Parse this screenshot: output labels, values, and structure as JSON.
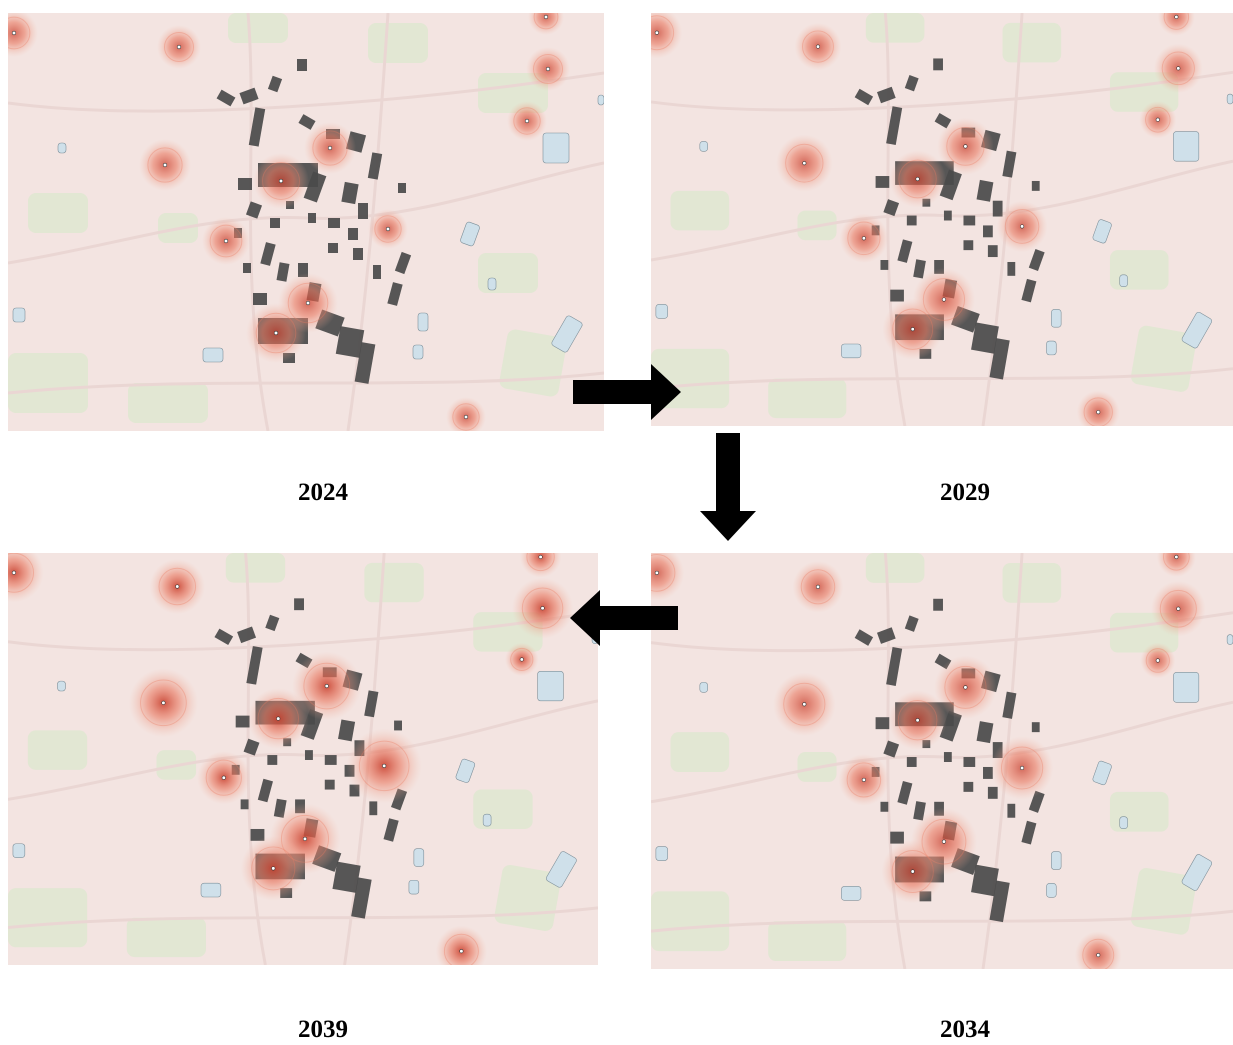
{
  "panels": [
    {
      "id": "p2024",
      "year": "2024",
      "level": 1
    },
    {
      "id": "p2029",
      "year": "2029",
      "level": 2
    },
    {
      "id": "p2034",
      "year": "2034",
      "level": 3
    },
    {
      "id": "p2039",
      "year": "2039",
      "level": 4
    }
  ],
  "sequence": [
    "2024",
    "2029",
    "2034",
    "2039"
  ],
  "colors": {
    "map_background": "#f3e4e1",
    "park_green": "#dde7cf",
    "water_blue": "#cfe0ea",
    "building_dark": "#4a4a4a",
    "hotspot_outer": "#f2b8a4",
    "hotspot_mid": "#ea7a62",
    "hotspot_core": "#c8402e",
    "arrow": "#000000"
  },
  "icons": {
    "hotspot": "hotspot-marker-icon",
    "arrow": "flow-arrow-icon"
  }
}
